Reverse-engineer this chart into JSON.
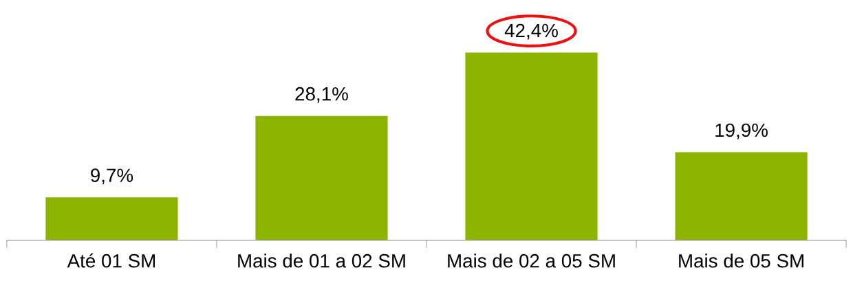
{
  "chart_data": {
    "type": "bar",
    "categories": [
      "Até 01 SM",
      "Mais de 01 a 02 SM",
      "Mais de 02 a 05 SM",
      "Mais de 05 SM"
    ],
    "values": [
      9.7,
      28.1,
      42.4,
      19.9
    ],
    "value_labels": [
      "9,7%",
      "28,1%",
      "42,4%",
      "19,9%"
    ],
    "color": "#8cb400",
    "grid": false,
    "legend": false
  }
}
